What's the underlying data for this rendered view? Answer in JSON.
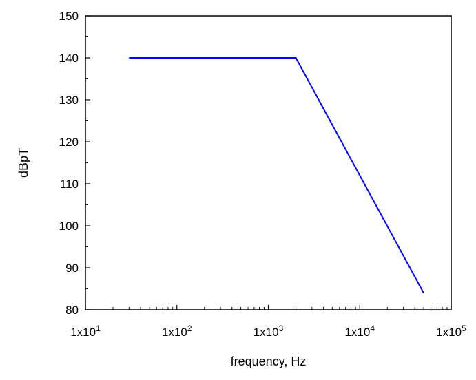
{
  "chart_data": {
    "type": "line",
    "xlabel": "frequency, Hz",
    "ylabel": "dBpT",
    "x_scale": "log",
    "xlim": [
      10,
      100000
    ],
    "ylim": [
      80,
      150
    ],
    "x_ticks": [
      {
        "value": 10,
        "mantissa": "1x10",
        "exponent": "1"
      },
      {
        "value": 100,
        "mantissa": "1x10",
        "exponent": "2"
      },
      {
        "value": 1000,
        "mantissa": "1x10",
        "exponent": "3"
      },
      {
        "value": 10000,
        "mantissa": "1x10",
        "exponent": "4"
      },
      {
        "value": 100000,
        "mantissa": "1x10",
        "exponent": "5"
      }
    ],
    "y_ticks": [
      80,
      90,
      100,
      110,
      120,
      130,
      140,
      150
    ],
    "grid": false,
    "series": [
      {
        "color": "#0000ff",
        "x": [
          30,
          2000,
          50000
        ],
        "y": [
          140,
          140,
          84
        ]
      }
    ]
  }
}
